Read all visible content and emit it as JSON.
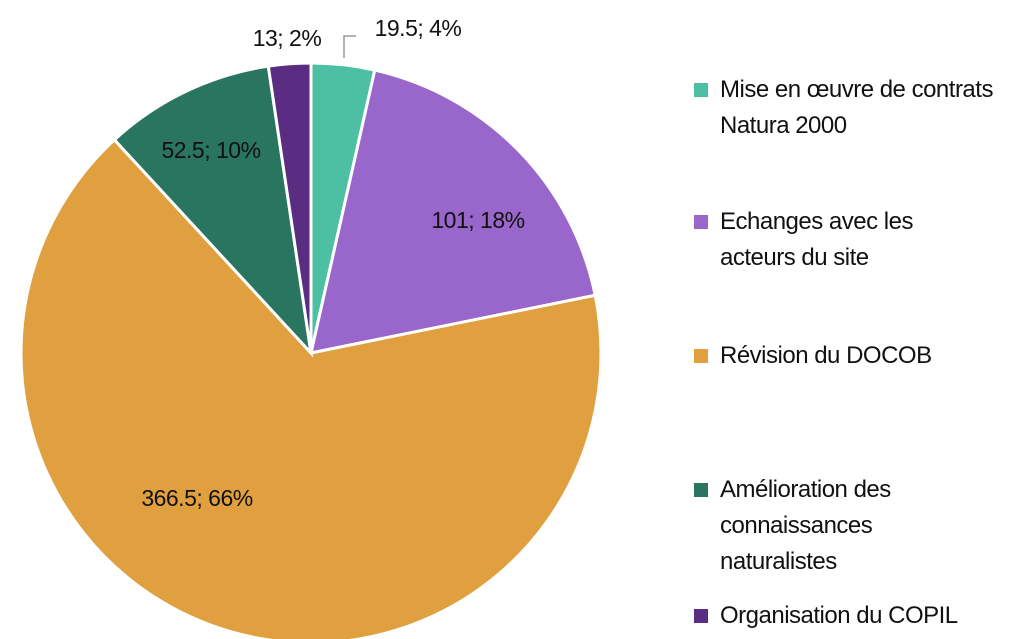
{
  "chart_data": {
    "type": "pie",
    "categories": [
      "Mise en œuvre de contrats Natura 2000",
      "Echanges avec les acteurs du site",
      "Révision du DOCOB",
      "Amélioration des connaissances naturalistes",
      "Organisation du COPIL"
    ],
    "values": [
      19.5,
      101,
      366.5,
      52.5,
      13
    ],
    "value_labels": [
      "19.5; 4%",
      "101; 18%",
      "366.5; 66%",
      "52.5; 10%",
      "13; 2%"
    ],
    "colors": [
      "#4dbfa3",
      "#9966cc",
      "#e0a040",
      "#2a7560",
      "#5a2d82"
    ],
    "legend": "right"
  }
}
